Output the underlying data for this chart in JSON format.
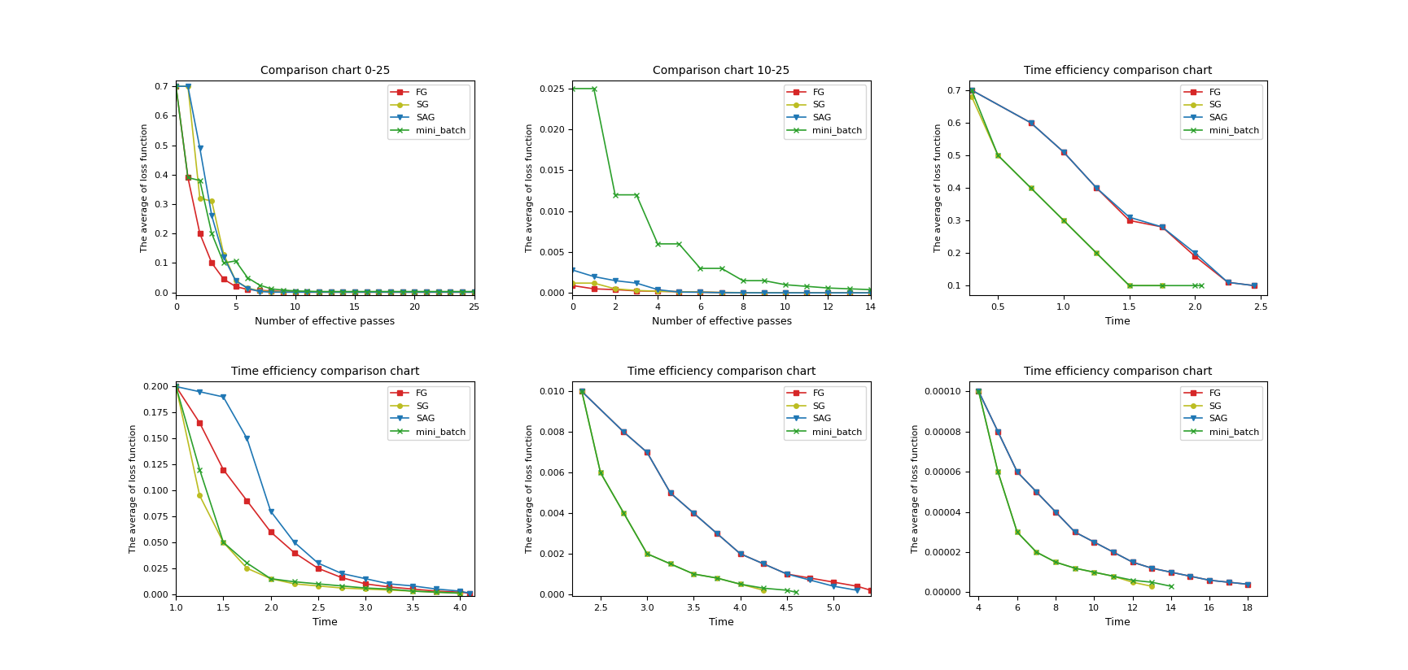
{
  "title1": "Comparison chart 0-25",
  "title2": "Comparison chart 10-25",
  "title3": "Time efficiency comparison chart",
  "title4": "Time efficiency comparison chart",
  "title5": "Time efficiency comparison chart",
  "title6": "Time efficiency comparison chart",
  "xlabel_passes": "Number of effective passes",
  "xlabel_time": "Time",
  "ylabel": "The average of loss function",
  "colors": {
    "FG": "#d62728",
    "SG": "#bcbd22",
    "SAG": "#1f77b4",
    "mini_batch": "#2ca02c"
  },
  "series_keys": [
    "FG",
    "SG",
    "SAG",
    "mini_batch"
  ],
  "chart1": {
    "xlim": [
      0,
      25
    ],
    "ylim": [
      -0.01,
      0.72
    ],
    "FG_x": [
      0,
      1,
      2,
      3,
      4,
      5,
      6,
      7,
      8,
      9,
      10,
      11,
      12,
      13,
      14,
      15,
      16,
      17,
      18,
      19,
      20,
      21,
      22,
      23,
      24,
      25
    ],
    "FG_y": [
      0.7,
      0.39,
      0.2,
      0.1,
      0.045,
      0.02,
      0.01,
      0.007,
      0.005,
      0.003,
      0.002,
      0.001,
      0.001,
      0.001,
      0.001,
      0.001,
      0.001,
      0.001,
      0.001,
      0.001,
      0.001,
      0.001,
      0.001,
      0.001,
      0.001,
      0.001
    ],
    "SG_x": [
      0,
      1,
      2,
      3,
      4,
      5,
      6,
      7,
      8,
      9,
      10,
      11,
      12,
      13,
      14,
      15,
      16,
      17,
      18,
      19,
      20,
      21,
      22,
      23,
      24,
      25
    ],
    "SG_y": [
      0.7,
      0.7,
      0.32,
      0.31,
      0.13,
      0.04,
      0.015,
      0.005,
      0.003,
      0.002,
      0.001,
      0.001,
      0.001,
      0.001,
      0.001,
      0.001,
      0.001,
      0.001,
      0.001,
      0.001,
      0.001,
      0.001,
      0.001,
      0.001,
      0.001,
      0.001
    ],
    "SAG_x": [
      0,
      1,
      2,
      3,
      4,
      5,
      6,
      7,
      8,
      9,
      10,
      11,
      12,
      13,
      14,
      15,
      16,
      17,
      18,
      19,
      20,
      21,
      22,
      23,
      24,
      25
    ],
    "SAG_y": [
      0.7,
      0.7,
      0.49,
      0.26,
      0.12,
      0.04,
      0.014,
      0.003,
      0.001,
      0.001,
      0.001,
      0.001,
      0.001,
      0.001,
      0.001,
      0.001,
      0.001,
      0.001,
      0.001,
      0.001,
      0.001,
      0.001,
      0.001,
      0.001,
      0.001,
      0.001
    ],
    "mini_batch_x": [
      0,
      1,
      2,
      3,
      4,
      5,
      6,
      7,
      8,
      9,
      10,
      11,
      12,
      13,
      14,
      15,
      16,
      17,
      18,
      19,
      20,
      21,
      22,
      23,
      24,
      25
    ],
    "mini_batch_y": [
      0.7,
      0.39,
      0.38,
      0.2,
      0.1,
      0.107,
      0.05,
      0.025,
      0.012,
      0.008,
      0.005,
      0.004,
      0.003,
      0.003,
      0.003,
      0.003,
      0.003,
      0.003,
      0.003,
      0.003,
      0.003,
      0.003,
      0.003,
      0.003,
      0.003,
      0.003
    ]
  },
  "chart2": {
    "xlim": [
      0,
      14
    ],
    "ylim": [
      -0.0003,
      0.026
    ],
    "FG_x": [
      0,
      1,
      2,
      3,
      4,
      5,
      6,
      7,
      8,
      9,
      10,
      11,
      12,
      13,
      14
    ],
    "FG_y": [
      0.0009,
      0.0005,
      0.0004,
      0.00025,
      0.0002,
      0.00015,
      0.0001,
      5e-05,
      3e-05,
      2e-05,
      2e-05,
      1e-05,
      1e-05,
      1e-05,
      1e-05
    ],
    "SG_x": [
      0,
      1,
      2,
      3,
      4,
      5,
      6,
      7,
      8,
      9,
      10,
      11,
      12,
      13,
      14
    ],
    "SG_y": [
      0.0012,
      0.0012,
      0.0005,
      0.0003,
      0.0002,
      0.00015,
      0.0001,
      6e-05,
      4e-05,
      3e-05,
      2e-05,
      1e-05,
      1e-05,
      1e-05,
      1e-05
    ],
    "SAG_x": [
      0,
      1,
      2,
      3,
      4,
      5,
      6,
      7,
      8,
      9,
      10,
      11,
      12,
      13,
      14
    ],
    "SAG_y": [
      0.0028,
      0.002,
      0.0015,
      0.0012,
      0.0004,
      0.0001,
      8e-05,
      3e-05,
      2e-05,
      1e-05,
      1e-05,
      1e-05,
      1e-05,
      1e-05,
      1e-05
    ],
    "mini_batch_x": [
      0,
      1,
      2,
      3,
      4,
      5,
      6,
      7,
      8,
      9,
      10,
      11,
      12,
      13,
      14
    ],
    "mini_batch_y": [
      0.025,
      0.025,
      0.012,
      0.012,
      0.006,
      0.006,
      0.003,
      0.003,
      0.0015,
      0.0015,
      0.001,
      0.0008,
      0.0006,
      0.0005,
      0.0004
    ]
  },
  "chart3": {
    "xlim": [
      0.28,
      2.55
    ],
    "ylim": [
      0.07,
      0.73
    ],
    "FG_x": [
      0.3,
      0.75,
      1.0,
      1.25,
      1.5,
      1.75,
      2.0,
      2.25,
      2.45
    ],
    "FG_y": [
      0.7,
      0.6,
      0.51,
      0.4,
      0.3,
      0.28,
      0.19,
      0.11,
      0.1
    ],
    "SG_x": [
      0.3,
      0.5,
      0.75,
      1.0,
      1.25,
      1.5,
      1.75
    ],
    "SG_y": [
      0.68,
      0.5,
      0.4,
      0.3,
      0.2,
      0.1,
      0.1
    ],
    "SAG_x": [
      0.3,
      0.75,
      1.0,
      1.25,
      1.5,
      1.75,
      2.0,
      2.25,
      2.45
    ],
    "SAG_y": [
      0.7,
      0.6,
      0.51,
      0.4,
      0.31,
      0.28,
      0.2,
      0.11,
      0.1
    ],
    "mini_batch_x": [
      0.3,
      0.5,
      0.75,
      1.0,
      1.25,
      1.5,
      1.75,
      2.0,
      2.05
    ],
    "mini_batch_y": [
      0.7,
      0.5,
      0.4,
      0.3,
      0.2,
      0.1,
      0.1,
      0.1,
      0.1
    ]
  },
  "chart4": {
    "xlim": [
      1.0,
      4.15
    ],
    "ylim": [
      -0.002,
      0.205
    ],
    "FG_x": [
      1.0,
      1.25,
      1.5,
      1.75,
      2.0,
      2.25,
      2.5,
      2.75,
      3.0,
      3.25,
      3.5,
      3.75,
      4.0,
      4.1
    ],
    "FG_y": [
      0.2,
      0.165,
      0.12,
      0.09,
      0.06,
      0.04,
      0.025,
      0.016,
      0.01,
      0.007,
      0.005,
      0.003,
      0.002,
      0.001
    ],
    "SG_x": [
      1.0,
      1.25,
      1.5,
      1.75,
      2.0,
      2.25,
      2.5,
      2.75,
      3.0,
      3.25,
      3.5,
      3.75,
      4.0
    ],
    "SG_y": [
      0.2,
      0.095,
      0.05,
      0.025,
      0.015,
      0.01,
      0.008,
      0.006,
      0.005,
      0.004,
      0.003,
      0.002,
      0.001
    ],
    "SAG_x": [
      1.0,
      1.25,
      1.5,
      1.75,
      2.0,
      2.25,
      2.5,
      2.75,
      3.0,
      3.25,
      3.5,
      3.75,
      4.0,
      4.1
    ],
    "SAG_y": [
      0.2,
      0.195,
      0.19,
      0.15,
      0.08,
      0.05,
      0.03,
      0.02,
      0.015,
      0.01,
      0.008,
      0.005,
      0.003,
      0.001
    ],
    "mini_batch_x": [
      1.0,
      1.25,
      1.5,
      1.75,
      2.0,
      2.25,
      2.5,
      2.75,
      3.0,
      3.25,
      3.5,
      3.75,
      4.0
    ],
    "mini_batch_y": [
      0.2,
      0.12,
      0.05,
      0.03,
      0.015,
      0.012,
      0.01,
      0.008,
      0.006,
      0.005,
      0.003,
      0.002,
      0.001
    ]
  },
  "chart5": {
    "xlim": [
      2.2,
      5.4
    ],
    "ylim": [
      -0.0001,
      0.0105
    ],
    "FG_x": [
      2.3,
      2.75,
      3.0,
      3.25,
      3.5,
      3.75,
      4.0,
      4.25,
      4.5,
      4.75,
      5.0,
      5.25,
      5.4
    ],
    "FG_y": [
      0.01,
      0.008,
      0.007,
      0.005,
      0.004,
      0.003,
      0.002,
      0.0015,
      0.001,
      0.0008,
      0.0006,
      0.0004,
      0.0002
    ],
    "SG_x": [
      2.3,
      2.5,
      2.75,
      3.0,
      3.25,
      3.5,
      3.75,
      4.0,
      4.25
    ],
    "SG_y": [
      0.01,
      0.006,
      0.004,
      0.002,
      0.0015,
      0.001,
      0.0008,
      0.0005,
      0.0002
    ],
    "SAG_x": [
      2.3,
      2.75,
      3.0,
      3.25,
      3.5,
      3.75,
      4.0,
      4.25,
      4.5,
      4.75,
      5.0,
      5.25
    ],
    "SAG_y": [
      0.01,
      0.008,
      0.007,
      0.005,
      0.004,
      0.003,
      0.002,
      0.0015,
      0.001,
      0.0007,
      0.0004,
      0.0002
    ],
    "mini_batch_x": [
      2.3,
      2.5,
      2.75,
      3.0,
      3.25,
      3.5,
      3.75,
      4.0,
      4.25,
      4.5,
      4.6
    ],
    "mini_batch_y": [
      0.01,
      0.006,
      0.004,
      0.002,
      0.0015,
      0.001,
      0.0008,
      0.0005,
      0.0003,
      0.0002,
      0.0001
    ]
  },
  "chart6": {
    "xlim": [
      3.5,
      19.0
    ],
    "ylim": [
      -2e-06,
      0.000105
    ],
    "FG_x": [
      4.0,
      5.0,
      6.0,
      7.0,
      8.0,
      9.0,
      10.0,
      11.0,
      12.0,
      13.0,
      14.0,
      15.0,
      16.0,
      17.0,
      18.0
    ],
    "FG_y": [
      0.0001,
      8e-05,
      6e-05,
      5e-05,
      4e-05,
      3e-05,
      2.5e-05,
      2e-05,
      1.5e-05,
      1.2e-05,
      1e-05,
      8e-06,
      6e-06,
      5e-06,
      4e-06
    ],
    "SG_x": [
      4.0,
      5.0,
      6.0,
      7.0,
      8.0,
      9.0,
      10.0,
      11.0,
      12.0,
      13.0
    ],
    "SG_y": [
      0.0001,
      6e-05,
      3e-05,
      2e-05,
      1.5e-05,
      1.2e-05,
      1e-05,
      8e-06,
      5e-06,
      3e-06
    ],
    "SAG_x": [
      4.0,
      5.0,
      6.0,
      7.0,
      8.0,
      9.0,
      10.0,
      11.0,
      12.0,
      13.0,
      14.0,
      15.0,
      16.0,
      17.0,
      18.0
    ],
    "SAG_y": [
      0.0001,
      8e-05,
      6e-05,
      5e-05,
      4e-05,
      3e-05,
      2.5e-05,
      2e-05,
      1.5e-05,
      1.2e-05,
      1e-05,
      8e-06,
      6e-06,
      5e-06,
      4e-06
    ],
    "mini_batch_x": [
      4.0,
      5.0,
      6.0,
      7.0,
      8.0,
      9.0,
      10.0,
      11.0,
      12.0,
      13.0,
      14.0
    ],
    "mini_batch_y": [
      0.0001,
      6e-05,
      3e-05,
      2e-05,
      1.5e-05,
      1.2e-05,
      1e-05,
      8e-06,
      6e-06,
      5e-06,
      3e-06
    ]
  }
}
